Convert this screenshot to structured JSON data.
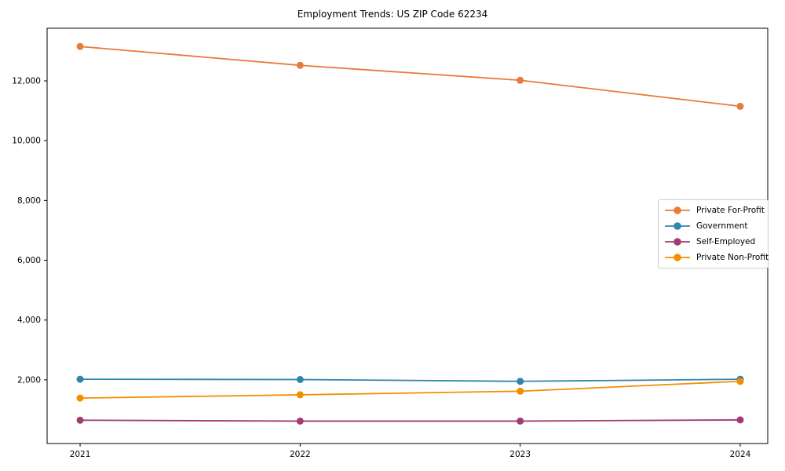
{
  "chart_data": {
    "type": "line",
    "title": "Employment Trends: US ZIP Code 62234",
    "categories": [
      "2021",
      "2022",
      "2023",
      "2024"
    ],
    "series": [
      {
        "name": "Private For-Profit",
        "color": "#E87A3D",
        "values": [
          13150,
          12520,
          12020,
          11150
        ]
      },
      {
        "name": "Government",
        "color": "#2E86AB",
        "values": [
          2020,
          2010,
          1950,
          2020
        ]
      },
      {
        "name": "Self-Employed",
        "color": "#A23B72",
        "values": [
          650,
          620,
          620,
          660
        ]
      },
      {
        "name": "Private Non-Profit",
        "color": "#F18F01",
        "values": [
          1390,
          1500,
          1620,
          1950
        ]
      }
    ],
    "xlabel": "",
    "ylabel": "",
    "xlim": [
      -0.15,
      3.125
    ],
    "ylim": [
      -130,
      13760
    ],
    "y_ticks": [
      2000,
      4000,
      6000,
      8000,
      10000,
      12000
    ],
    "y_tick_format": "comma",
    "grid": false,
    "legend_position": "center-right",
    "axis_color": "#000000",
    "background_color": "#ffffff"
  }
}
